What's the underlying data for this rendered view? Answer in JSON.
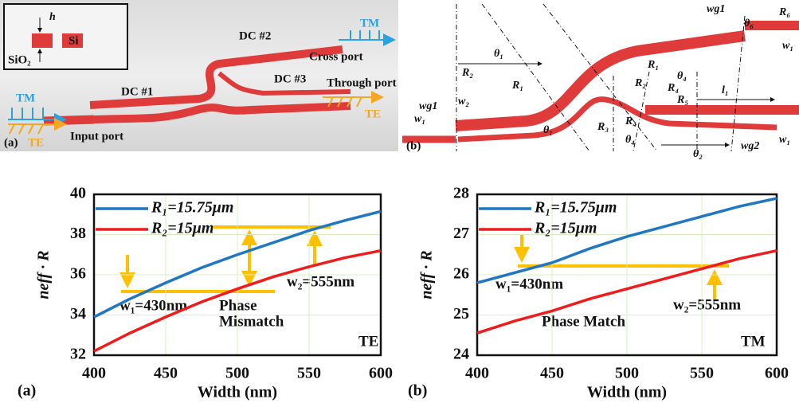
{
  "diagram_a": {
    "label": "(a)",
    "inset": [
      "h",
      "Si",
      "SiO₂"
    ],
    "tm": "TM",
    "te": "TE",
    "ports": [
      "Input port",
      "Cross port",
      "Through port"
    ],
    "couplers": [
      "DC #1",
      "DC #2",
      "DC #3"
    ]
  },
  "diagram_b": {
    "label": "(b)",
    "labels": [
      "wg1",
      "θ₆",
      "R₆",
      "w₁",
      "θ₁",
      "R₂",
      "R₁",
      "wg1",
      "w₂",
      "w₁",
      "θ₁",
      "R₃",
      "R₄",
      "θ₄",
      "R₁",
      "R₂",
      "θ₄",
      "R₄",
      "R₅",
      "l₁",
      "θ₂",
      "wg2",
      "w₁"
    ]
  },
  "chart_data": [
    {
      "type": "line",
      "panel_label": "(a)",
      "x_label": "Width (nm)",
      "y_label": "neff · R",
      "x": [
        400,
        425,
        450,
        475,
        500,
        525,
        550,
        575,
        600
      ],
      "series": [
        {
          "name": "R₁=15.75μm",
          "color": "#1f77c4",
          "values": [
            33.9,
            34.8,
            35.6,
            36.35,
            37.0,
            37.6,
            38.2,
            38.7,
            39.15
          ]
        },
        {
          "name": "R₂=15μm",
          "color": "#ee1c1c",
          "values": [
            32.2,
            33.1,
            33.9,
            34.65,
            35.3,
            35.9,
            36.4,
            36.85,
            37.2
          ]
        }
      ],
      "xlim": [
        400,
        600
      ],
      "xticks": [
        400,
        450,
        500,
        550,
        600
      ],
      "ylim": [
        32,
        40
      ],
      "yticks": [
        32,
        34,
        36,
        38,
        40
      ],
      "grid": true,
      "legend": "upper-left",
      "annotations": [
        "w₁=430nm",
        "Phase",
        "Mismatch",
        "w₂=555nm",
        "TE"
      ]
    },
    {
      "type": "line",
      "panel_label": "(b)",
      "x_label": "Width (nm)",
      "y_label": "neff · R",
      "x": [
        400,
        425,
        450,
        475,
        500,
        525,
        550,
        575,
        600
      ],
      "series": [
        {
          "name": "R₁=15.75μm",
          "color": "#1f77c4",
          "values": [
            25.8,
            26.05,
            26.3,
            26.65,
            26.95,
            27.2,
            27.45,
            27.7,
            27.9
          ]
        },
        {
          "name": "R₂=15μm",
          "color": "#ee1c1c",
          "values": [
            24.55,
            24.85,
            25.1,
            25.4,
            25.65,
            25.9,
            26.15,
            26.4,
            26.6
          ]
        }
      ],
      "xlim": [
        400,
        600
      ],
      "xticks": [
        400,
        450,
        500,
        550,
        600
      ],
      "ylim": [
        24,
        28
      ],
      "yticks": [
        24,
        25,
        26,
        27,
        28
      ],
      "grid": true,
      "legend": "upper-left",
      "annotations": [
        "w₁=430nm",
        "w₂=555nm",
        "Phase Match",
        "TM"
      ]
    }
  ]
}
